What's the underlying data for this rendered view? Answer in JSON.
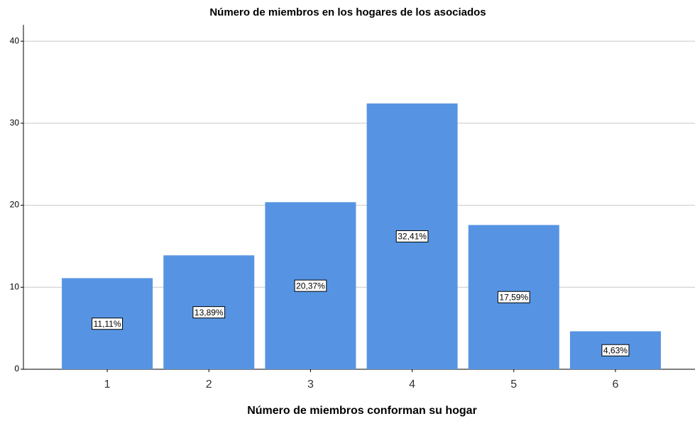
{
  "chart_data": {
    "type": "bar",
    "title": "Número de miembros en los hogares de los asociados",
    "x_label": "Número de miembros conforman su hogar",
    "categories": [
      "1",
      "2",
      "3",
      "4",
      "5",
      "6"
    ],
    "values": [
      11.11,
      13.89,
      20.37,
      32.41,
      17.59,
      4.63
    ],
    "value_labels": [
      "11,11%",
      "13,89%",
      "20,37%",
      "32,41%",
      "17,59%",
      "4,63%"
    ],
    "color": "#5694e3",
    "ylim": [
      0,
      42
    ],
    "yticks": [
      0,
      10,
      20,
      30,
      40
    ],
    "grid": true
  }
}
